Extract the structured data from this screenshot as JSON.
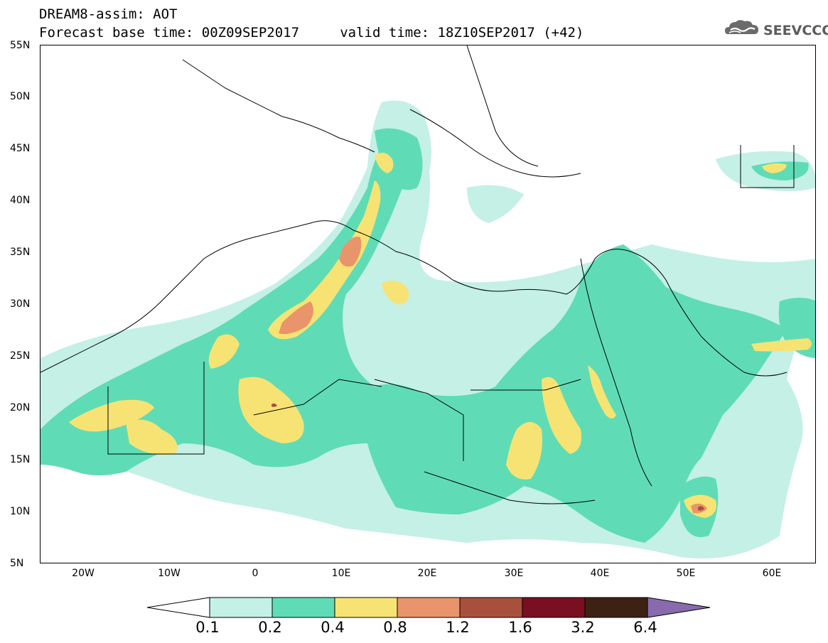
{
  "header": {
    "title_line1": "DREAM8-assim: AOT",
    "title_line2": "Forecast base time: 00Z09SEP2017     valid time: 18Z10SEP2017 (+42)",
    "logo_text": "SEEVCCC",
    "logo_icon": "cloud-logo-icon"
  },
  "map": {
    "lon_range": [
      -25,
      65
    ],
    "lat_range": [
      5,
      55
    ],
    "lat_labels": [
      "55N",
      "50N",
      "45N",
      "40N",
      "35N",
      "30N",
      "25N",
      "20N",
      "15N",
      "10N",
      "5N"
    ],
    "lon_labels": [
      "20W",
      "10W",
      "0",
      "10E",
      "20E",
      "30E",
      "40E",
      "50E",
      "60E"
    ]
  },
  "legend": {
    "levels": [
      "0.1",
      "0.2",
      "0.4",
      "0.8",
      "1.2",
      "1.6",
      "3.2",
      "6.4"
    ],
    "colors": [
      "#ffffff",
      "#c4f0e6",
      "#5fdcb5",
      "#f7e373",
      "#e9946a",
      "#a9503d",
      "#7a0f22",
      "#3d2214",
      "#8a6aae"
    ]
  }
}
